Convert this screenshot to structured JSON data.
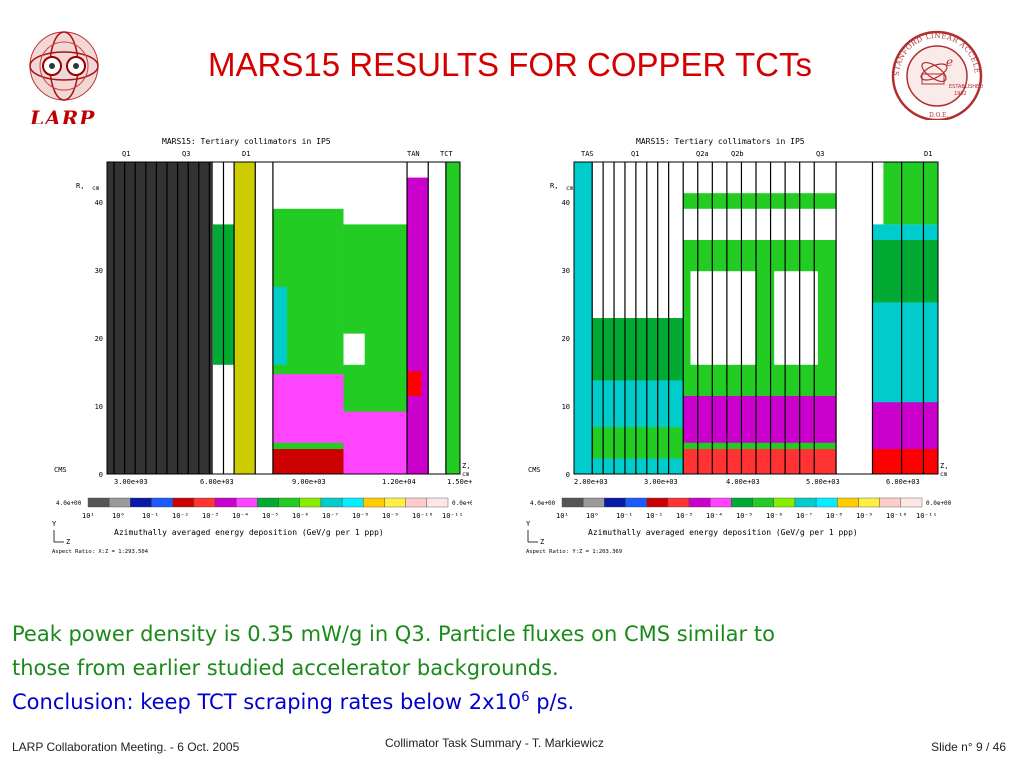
{
  "slide": {
    "title": "MARS15 RESULTS FOR COPPER TCTs",
    "larp_logo_text": "LARP",
    "seal_text": "STANFORD LINEAR ACCELERATOR CENTER",
    "seal_established": "ESTABLISHED",
    "seal_year": "1962",
    "seal_doe": "D.O.E."
  },
  "plots": [
    {
      "header": "MARS15: Tertiary collimators in IP5",
      "labels": [
        {
          "text": "Q1"
        },
        {
          "text": "Q3"
        },
        {
          "text": "D1"
        },
        {
          "text": "TAN"
        },
        {
          "text": "TCT"
        }
      ],
      "r_axis": "R,",
      "r_unit": "cm",
      "y_ticks": [
        "40",
        "30",
        "20",
        "10",
        "0"
      ],
      "x_ticks": [
        "3.00e+03",
        "6.00e+03",
        "9.00e+03",
        "1.20e+04",
        "1.50e+04"
      ],
      "z_label": "Z,",
      "z_unit": "cm",
      "cms_label": "CMS",
      "scale_min_label": "4.0e+00",
      "scale_max_label": "0.0e+00",
      "scale_ticks": [
        "10¹",
        "10⁰",
        "10⁻¹",
        "10⁻²",
        "10⁻³",
        "10⁻⁴",
        "10⁻⁵",
        "10⁻⁶",
        "10⁻⁷",
        "10⁻⁸",
        "10⁻⁹",
        "10⁻¹⁰",
        "10⁻¹¹"
      ],
      "axis_y": "Y",
      "axis_z": "Z",
      "xlabel": "Azimuthally averaged energy deposition (GeV/g per 1 ppp)",
      "aspect": "Aspect Ratio: X:Z = 1:293.504"
    },
    {
      "header": "MARS15: Tertiary collimators in IP5",
      "labels": [
        {
          "text": "TAS"
        },
        {
          "text": "Q1"
        },
        {
          "text": "Q2a"
        },
        {
          "text": "Q2b"
        },
        {
          "text": "Q3"
        },
        {
          "text": "D1"
        }
      ],
      "r_axis": "R,",
      "r_unit": "cm",
      "y_ticks": [
        "40",
        "30",
        "20",
        "10",
        "0"
      ],
      "x_ticks": [
        "2.00e+03",
        "3.00e+03",
        "4.00e+03",
        "5.00e+03",
        "6.00e+03"
      ],
      "z_label": "Z,",
      "z_unit": "cm",
      "cms_label": "CMS",
      "scale_min_label": "4.0e+00",
      "scale_max_label": "0.0e+00",
      "scale_ticks": [
        "10¹",
        "10⁰",
        "10⁻¹",
        "10⁻²",
        "10⁻³",
        "10⁻⁴",
        "10⁻⁵",
        "10⁻⁶",
        "10⁻⁷",
        "10⁻⁸",
        "10⁻⁹",
        "10⁻¹⁰",
        "10⁻¹¹"
      ],
      "axis_y": "Y",
      "axis_z": "Z",
      "xlabel": "Azimuthally averaged energy deposition (GeV/g per 1 ppp)",
      "aspect": "Aspect Ratio: Y:Z = 1:203.369"
    }
  ],
  "colors": {
    "scale": [
      "#555555",
      "#9a9a9a",
      "#0a1aa8",
      "#1a5aff",
      "#cc0000",
      "#ff3333",
      "#cc00cc",
      "#ff44ff",
      "#00aa33",
      "#22cc22",
      "#88ee00",
      "#00cccc",
      "#00eeff",
      "#ffcc00",
      "#ffee44",
      "#ffcccc",
      "#ffe6e6"
    ],
    "title": "#d40000",
    "caption_green": "#1a8a1a",
    "caption_blue": "#0000cc"
  },
  "caption": {
    "line1": "Peak power density is 0.35 mW/g in Q3. Particle fluxes on CMS similar to",
    "line2": "those from earlier studied accelerator backgrounds.",
    "line3_prefix": "Conclusion: keep TCT scraping rates below 2x10",
    "line3_exp": "6",
    "line3_suffix": " p/s."
  },
  "footer": {
    "left": "LARP Collaboration Meeting.  -  6 Oct. 2005",
    "center": "Collimator Task Summary  -  T. Markiewicz",
    "right": "Slide n° 9 / 46"
  }
}
